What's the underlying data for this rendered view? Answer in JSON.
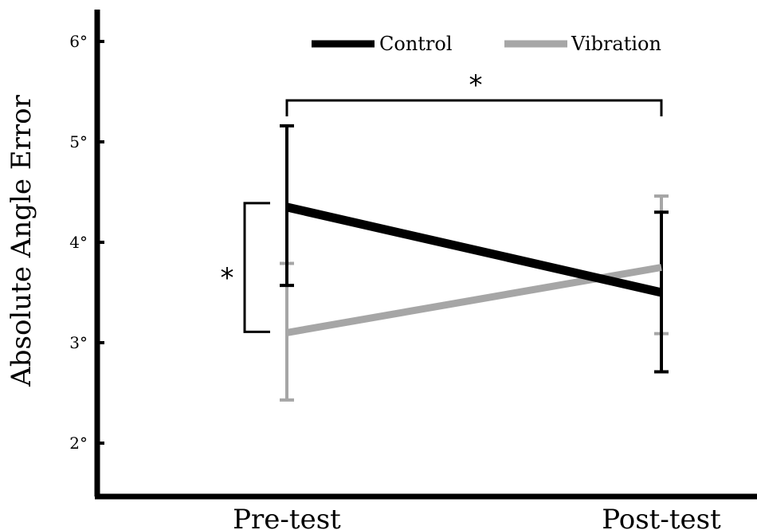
{
  "chart_data": {
    "type": "line",
    "ylabel": "Absolute Angle Error",
    "categories": [
      "Pre-test",
      "Post-test"
    ],
    "ylim": [
      1.5,
      6.3
    ],
    "yticks": [
      {
        "value": 2,
        "label": "2°"
      },
      {
        "value": 3,
        "label": "3°"
      },
      {
        "value": 4,
        "label": "4°"
      },
      {
        "value": 5,
        "label": "5°"
      },
      {
        "value": 6,
        "label": "6°"
      }
    ],
    "legend_position": "top",
    "series": [
      {
        "name": "Control",
        "color": "#000000",
        "values": [
          4.35,
          3.5
        ],
        "error_low": [
          3.57,
          2.71
        ],
        "error_high": [
          5.16,
          4.3
        ]
      },
      {
        "name": "Vibration",
        "color": "#a6a6a6",
        "values": [
          3.1,
          3.75
        ],
        "error_low": [
          2.43,
          3.09
        ],
        "error_high": [
          3.79,
          4.46
        ]
      }
    ],
    "annotations": [
      {
        "type": "significance-bracket",
        "between": "Pre-test vs Post-test (Control)",
        "label": "*"
      },
      {
        "type": "significance-bracket",
        "between": "Control vs Vibration at Pre-test",
        "label": "*"
      }
    ]
  }
}
